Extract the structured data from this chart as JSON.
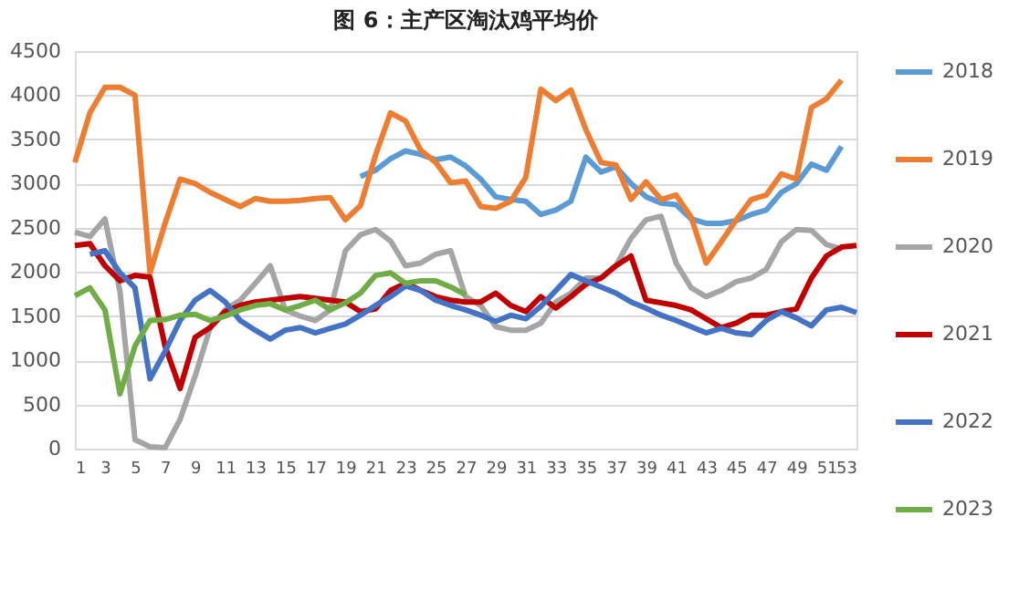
{
  "chart_data": {
    "type": "line",
    "title": "图 6：主产区淘汰鸡平均价",
    "x": [
      1,
      2,
      3,
      4,
      5,
      6,
      7,
      8,
      9,
      10,
      11,
      12,
      13,
      14,
      15,
      16,
      17,
      18,
      19,
      20,
      21,
      22,
      23,
      24,
      25,
      26,
      27,
      28,
      29,
      30,
      31,
      32,
      33,
      34,
      35,
      36,
      37,
      38,
      39,
      40,
      41,
      42,
      43,
      44,
      45,
      46,
      47,
      48,
      49,
      50,
      51,
      52,
      53
    ],
    "series": [
      {
        "name": "2018",
        "color": "#5b9bd5",
        "values": [
          null,
          null,
          null,
          null,
          null,
          null,
          null,
          null,
          null,
          null,
          null,
          null,
          null,
          null,
          null,
          null,
          null,
          null,
          null,
          3080,
          3150,
          3280,
          3370,
          3330,
          3270,
          3300,
          3200,
          3050,
          2850,
          2820,
          2800,
          2650,
          2700,
          2800,
          3300,
          3130,
          3190,
          3000,
          2850,
          2780,
          2760,
          2600,
          2550,
          2550,
          2580,
          2650,
          2700,
          2900,
          3000,
          3220,
          3150,
          3420,
          null
        ]
      },
      {
        "name": "2019",
        "color": "#ed7d31",
        "values": [
          3240,
          3800,
          4090,
          4090,
          4000,
          1990,
          2550,
          3050,
          3000,
          2900,
          2820,
          2740,
          2830,
          2800,
          2800,
          2810,
          2830,
          2840,
          2590,
          2750,
          3320,
          3800,
          3710,
          3380,
          3240,
          3010,
          3030,
          2740,
          2720,
          2800,
          3070,
          4070,
          3940,
          4060,
          3610,
          3240,
          3210,
          2820,
          3020,
          2820,
          2870,
          2620,
          2100,
          2340,
          2590,
          2820,
          2870,
          3110,
          3050,
          3860,
          3960,
          4170,
          null
        ]
      },
      {
        "name": "2020",
        "color": "#a5a5a5",
        "values": [
          2450,
          2400,
          2600,
          1780,
          100,
          20,
          10,
          330,
          820,
          1370,
          1570,
          1680,
          1870,
          2070,
          1570,
          1500,
          1450,
          1570,
          2240,
          2420,
          2480,
          2350,
          2070,
          2100,
          2200,
          2240,
          1720,
          1620,
          1380,
          1340,
          1340,
          1420,
          1660,
          1760,
          1930,
          1930,
          2070,
          2380,
          2590,
          2630,
          2100,
          1820,
          1720,
          1790,
          1890,
          1930,
          2030,
          2340,
          2480,
          2470,
          2310,
          2260,
          null
        ]
      },
      {
        "name": "2021",
        "color": "#c00000",
        "values": [
          2300,
          2320,
          2070,
          1900,
          1960,
          1940,
          1160,
          680,
          1260,
          1370,
          1550,
          1620,
          1660,
          1680,
          1700,
          1720,
          1700,
          1680,
          1660,
          1550,
          1580,
          1790,
          1870,
          1790,
          1720,
          1680,
          1660,
          1660,
          1760,
          1620,
          1550,
          1720,
          1590,
          1720,
          1860,
          1930,
          2070,
          2180,
          1680,
          1650,
          1620,
          1570,
          1470,
          1370,
          1420,
          1510,
          1510,
          1550,
          1580,
          1930,
          2180,
          2280,
          2300
        ]
      },
      {
        "name": "2022",
        "color": "#4472c4",
        "values": [
          null,
          2200,
          2240,
          1990,
          1820,
          790,
          1100,
          1450,
          1680,
          1790,
          1660,
          1450,
          1340,
          1240,
          1340,
          1370,
          1310,
          1360,
          1410,
          1510,
          1620,
          1720,
          1840,
          1790,
          1680,
          1620,
          1570,
          1510,
          1440,
          1510,
          1470,
          1610,
          1790,
          1970,
          1900,
          1830,
          1760,
          1660,
          1590,
          1510,
          1450,
          1380,
          1310,
          1360,
          1310,
          1290,
          1450,
          1550,
          1480,
          1390,
          1570,
          1600,
          1540
        ]
      },
      {
        "name": "2023",
        "color": "#70ad47",
        "values": [
          1730,
          1820,
          1570,
          620,
          1160,
          1450,
          1460,
          1510,
          1520,
          1450,
          1500,
          1570,
          1620,
          1640,
          1570,
          1620,
          1680,
          1570,
          1650,
          1760,
          1960,
          1990,
          1870,
          1900,
          1900,
          1830,
          1740,
          null,
          null,
          null,
          null,
          null,
          null,
          null,
          null,
          null,
          null,
          null,
          null,
          null,
          null,
          null,
          null,
          null,
          null,
          null,
          null,
          null,
          null,
          null,
          null,
          null,
          null
        ]
      }
    ],
    "xlim": [
      1,
      53
    ],
    "xticks": [
      1,
      3,
      5,
      7,
      9,
      11,
      13,
      15,
      17,
      19,
      21,
      23,
      25,
      27,
      29,
      31,
      33,
      35,
      37,
      39,
      41,
      43,
      45,
      47,
      49,
      51,
      53
    ],
    "ylim": [
      0,
      4500
    ],
    "yticks": [
      0,
      500,
      1000,
      1500,
      2000,
      2500,
      3000,
      3500,
      4000,
      4500
    ],
    "grid": "y",
    "legend": "right",
    "marker": "none",
    "line_style": "solid"
  }
}
